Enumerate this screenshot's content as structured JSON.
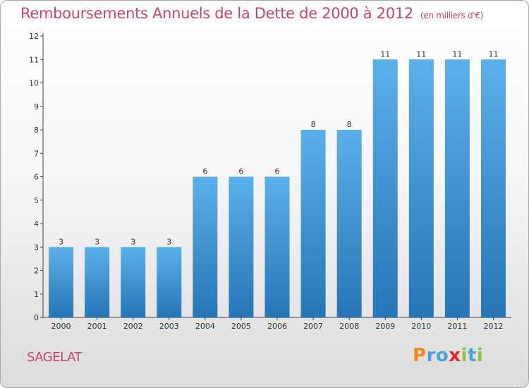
{
  "title": "Remboursements Annuels de la Dette de 2000 à 2012",
  "subtitle": "(en milliers d'€)",
  "commune": "SAGELAT",
  "logo_letters": [
    "P",
    "r",
    "o",
    "x",
    "i",
    "t",
    "i"
  ],
  "colors": {
    "title": "#c8436d",
    "bar_top": "#5cb0ea",
    "bar_bottom": "#2576b5",
    "axis": "#444444"
  },
  "chart_data": {
    "type": "bar",
    "title": "Remboursements Annuels de la Dette de 2000 à 2012",
    "subtitle": "(en milliers d'€)",
    "categories": [
      "2000",
      "2001",
      "2002",
      "2003",
      "2004",
      "2005",
      "2006",
      "2007",
      "2008",
      "2009",
      "2010",
      "2011",
      "2012"
    ],
    "values": [
      3,
      3,
      3,
      3,
      6,
      6,
      6,
      8,
      8,
      11,
      11,
      11,
      11
    ],
    "data_labels": [
      "3",
      "3",
      "3",
      "3",
      "6",
      "6",
      "6",
      "8",
      "8",
      "11",
      "11",
      "11",
      "11"
    ],
    "yticks": [
      "0",
      "1",
      "2",
      "3",
      "4",
      "5",
      "6",
      "7",
      "8",
      "9",
      "10",
      "11",
      "12"
    ],
    "ylim": [
      0,
      12
    ],
    "xlabel": "",
    "ylabel": "",
    "grid": false,
    "legend": "none"
  }
}
